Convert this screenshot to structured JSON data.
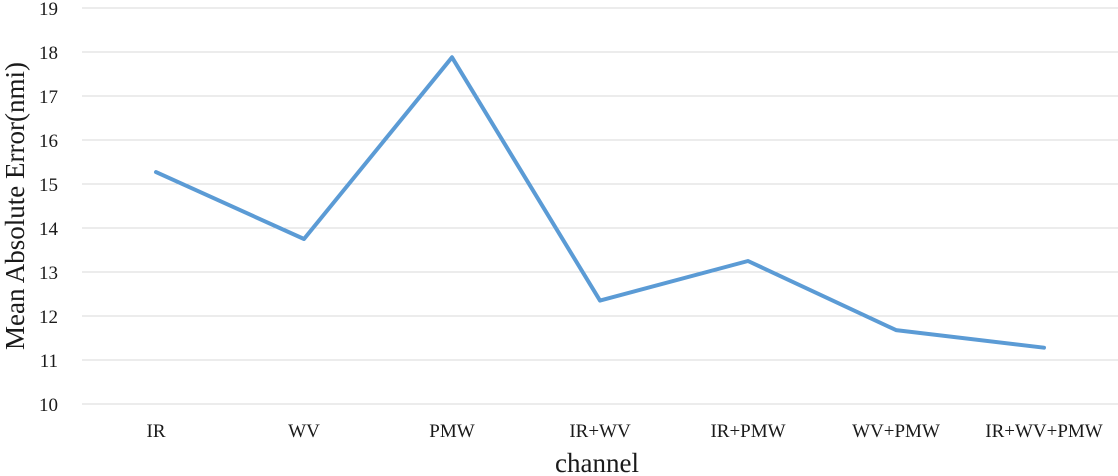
{
  "chart_data": {
    "type": "line",
    "title": "",
    "xlabel": "channel",
    "ylabel": "Mean Absolute Error(nmi)",
    "categories": [
      "IR",
      "WV",
      "PMW",
      "IR+WV",
      "IR+PMW",
      "WV+PMW",
      "IR+WV+PMW"
    ],
    "series": [
      {
        "values": [
          15.27,
          13.75,
          17.88,
          12.35,
          13.25,
          11.68,
          11.28
        ],
        "color": "#5b9bd5"
      }
    ],
    "ylim": [
      10,
      19
    ],
    "yticks": [
      10,
      11,
      12,
      13,
      14,
      15,
      16,
      17,
      18,
      19
    ],
    "grid": "horizontal",
    "legend": "none"
  }
}
